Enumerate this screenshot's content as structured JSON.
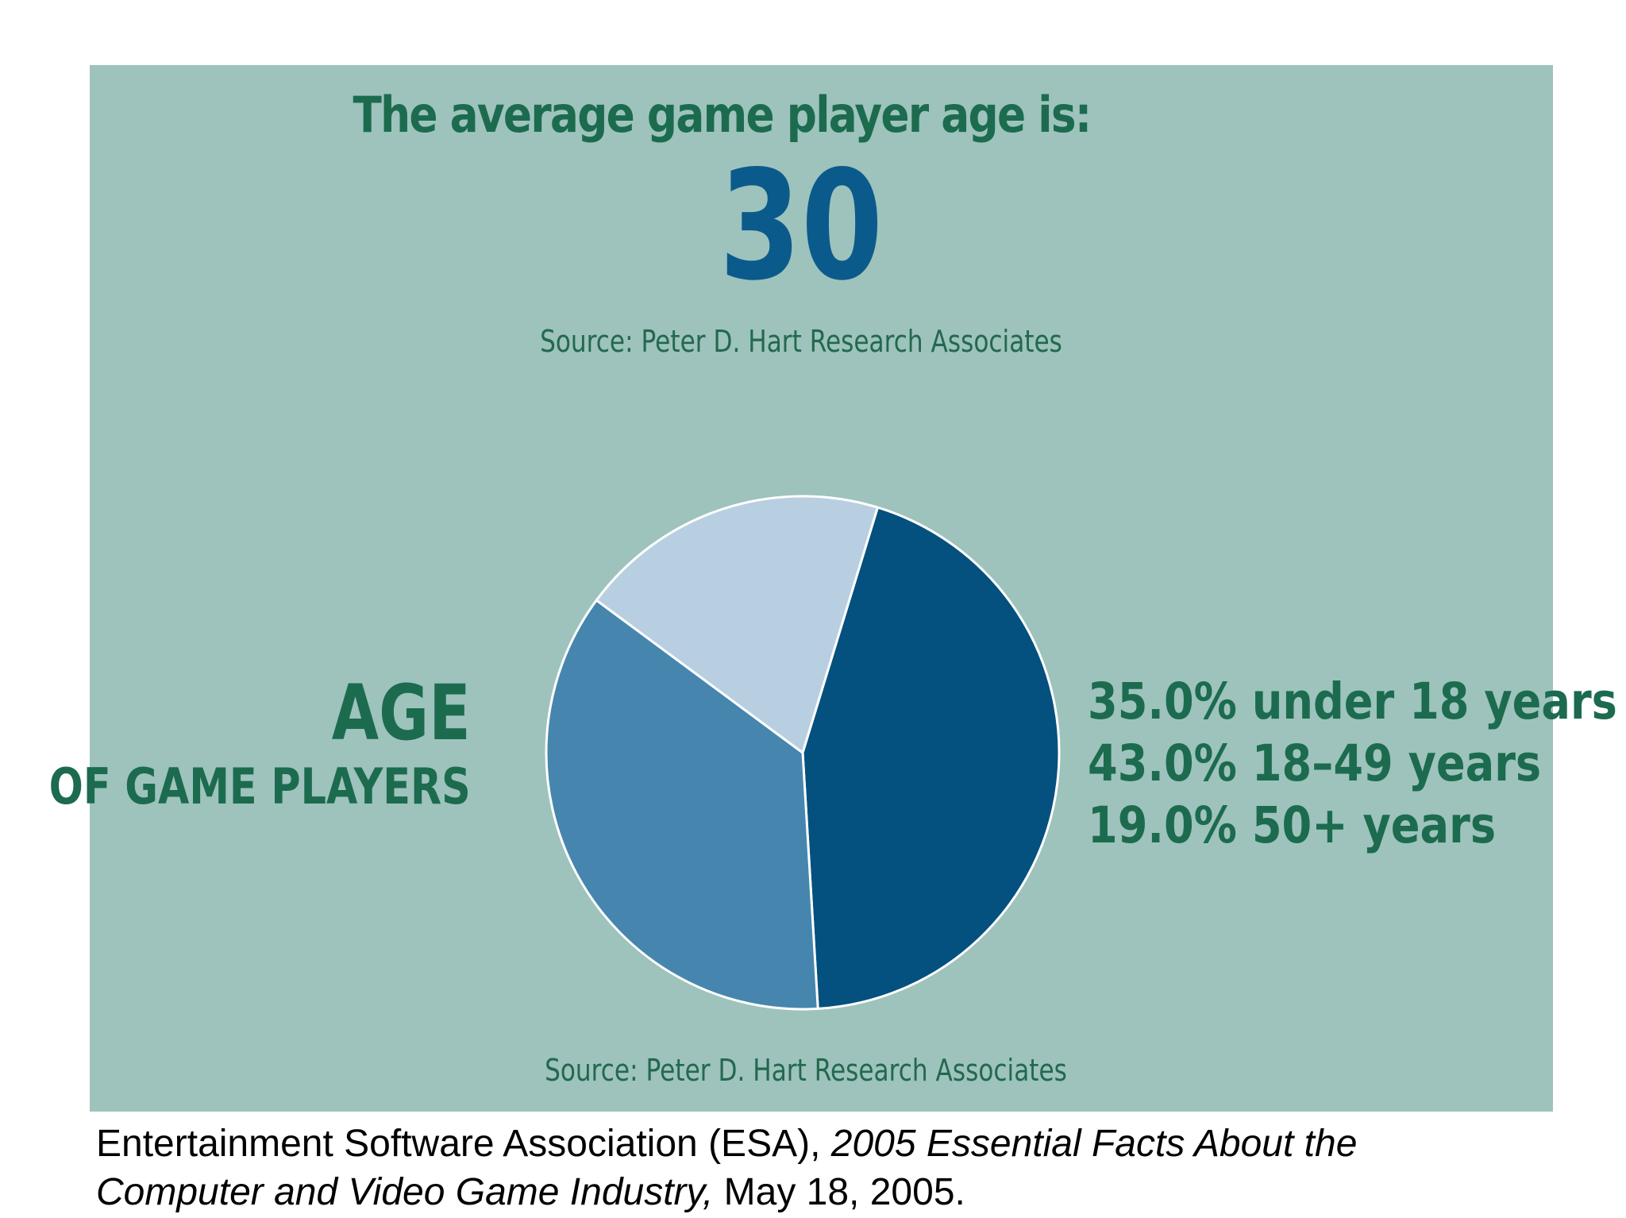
{
  "headline": "The average game player age is:",
  "average_age": "30",
  "source_top": "Source: Peter D. Hart Research Associates",
  "source_bottom": "Source: Peter D. Hart Research Associates",
  "age_title": "AGE",
  "age_subtitle": "OF GAME PLAYERS",
  "legend": [
    "35.0% under 18 years",
    "43.0% 18–49 years",
    "19.0% 50+ years"
  ],
  "caption": {
    "part1": "Entertainment Software Association (ESA), ",
    "italic": "2005 Essential Facts About the Computer and Video Game Industry,",
    "part2": " May 18, 2005."
  },
  "colors": {
    "background": "#9dc3bc",
    "title_green": "#1c6b4f",
    "number_blue": "#0b5a8c",
    "slice_dark": "#04507e",
    "slice_mid": "#4686ae",
    "slice_light": "#b8cfe2",
    "slice_border": "#ffffff"
  },
  "chart_data": {
    "type": "pie",
    "categories": [
      "under 18 years",
      "18–49 years",
      "50+ years"
    ],
    "values": [
      35.0,
      43.0,
      19.0
    ],
    "unit": "%",
    "title": "AGE",
    "subtitle": "OF GAME PLAYERS",
    "legend_position": "right"
  }
}
